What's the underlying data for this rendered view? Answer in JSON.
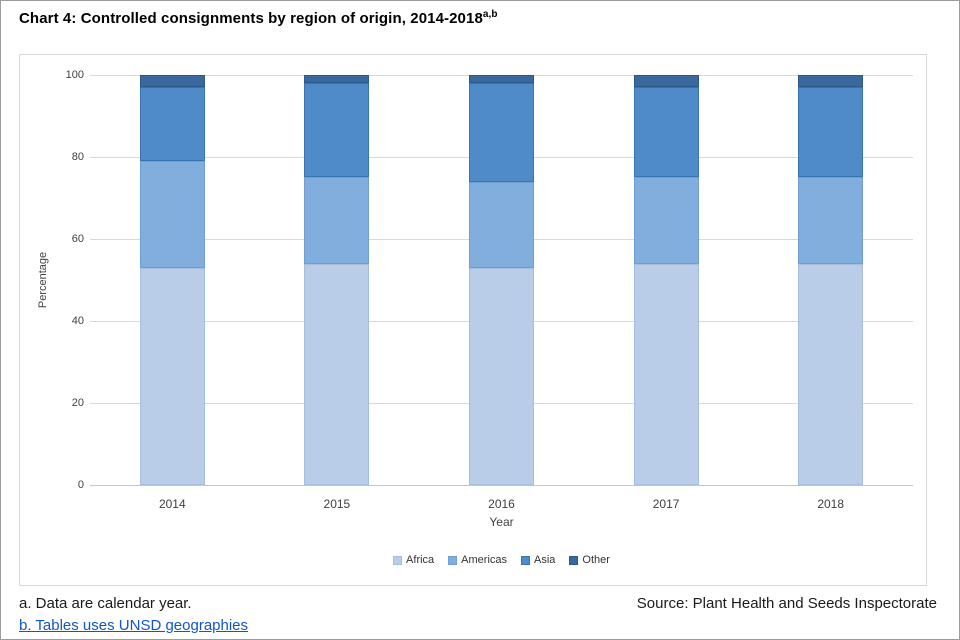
{
  "page": {
    "title": "Chart 4: Controlled consignments by region of origin, 2014-2018",
    "title_superscript": "a,b"
  },
  "chart_data": {
    "type": "bar",
    "stacked": true,
    "categories": [
      "2014",
      "2015",
      "2016",
      "2017",
      "2018"
    ],
    "series": [
      {
        "name": "Africa",
        "color": "#b9cde8",
        "border": "#a6bedd",
        "values": [
          53,
          54,
          53,
          54,
          54
        ]
      },
      {
        "name": "Americas",
        "color": "#82aede",
        "border": "#6f9ed3",
        "values": [
          26,
          21,
          21,
          21,
          21
        ]
      },
      {
        "name": "Asia",
        "color": "#4e8bc8",
        "border": "#3674b2",
        "values": [
          18,
          23,
          24,
          22,
          22
        ]
      },
      {
        "name": "Other",
        "color": "#38689e",
        "border": "#2d5886",
        "values": [
          3,
          2,
          2,
          3,
          3
        ]
      }
    ],
    "xlabel": "Year",
    "ylabel": "Percentage",
    "ylim": [
      0,
      100
    ],
    "yticks": [
      0,
      20,
      40,
      60,
      80,
      100
    ],
    "grid": true,
    "legend_position": "bottom-center"
  },
  "footnotes": {
    "note_a": "a. Data are calendar year.",
    "note_b": "b. Tables uses UNSD geographies",
    "source": "Source: Plant Health and Seeds Inspectorate"
  },
  "colors": {
    "grid": "#d9d9d9",
    "baseline": "#bfc6cc",
    "axis_text": "#404040",
    "link": "#1155cc"
  }
}
